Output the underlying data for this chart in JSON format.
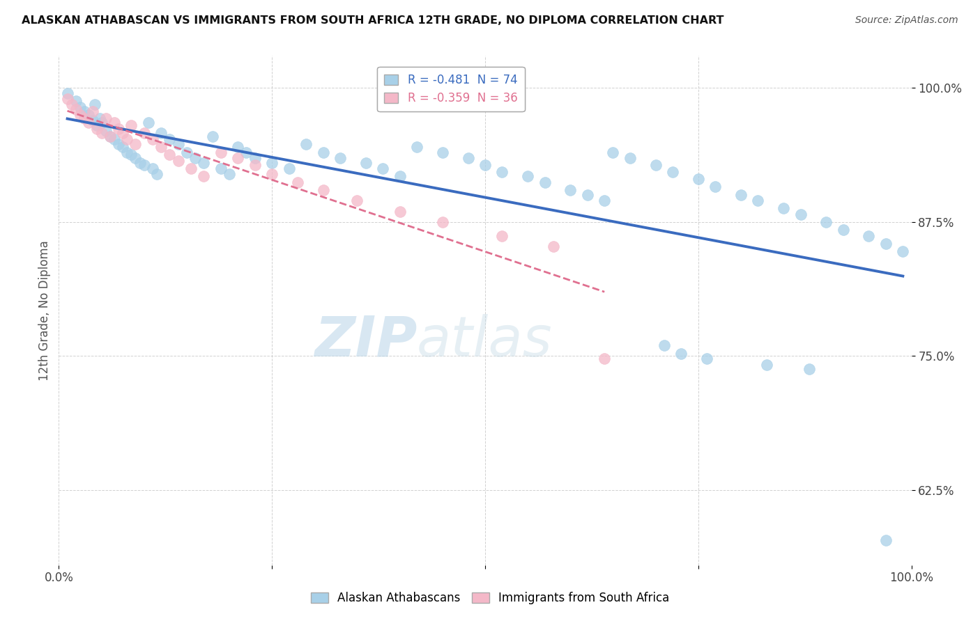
{
  "title": "ALASKAN ATHABASCAN VS IMMIGRANTS FROM SOUTH AFRICA 12TH GRADE, NO DIPLOMA CORRELATION CHART",
  "source": "Source: ZipAtlas.com",
  "ylabel": "12th Grade, No Diploma",
  "xlim": [
    0.0,
    1.0
  ],
  "ylim": [
    0.555,
    1.03
  ],
  "yticks": [
    0.625,
    0.75,
    0.875,
    1.0
  ],
  "ytick_labels": [
    "62.5%",
    "75.0%",
    "87.5%",
    "100.0%"
  ],
  "xticks": [
    0.0,
    0.25,
    0.5,
    0.75,
    1.0
  ],
  "xtick_labels": [
    "0.0%",
    "",
    "",
    "",
    "100.0%"
  ],
  "legend_blue_r": "-0.481",
  "legend_blue_n": "74",
  "legend_pink_r": "-0.359",
  "legend_pink_n": "36",
  "blue_color": "#a8d0e8",
  "pink_color": "#f4b8c8",
  "blue_line_color": "#3a6bbf",
  "pink_line_color": "#e07090",
  "background_color": "#ffffff",
  "watermark_zip": "ZIP",
  "watermark_atlas": "atlas",
  "blue_x": [
    0.01,
    0.02,
    0.025,
    0.03,
    0.035,
    0.04,
    0.042,
    0.045,
    0.048,
    0.05,
    0.055,
    0.06,
    0.065,
    0.07,
    0.075,
    0.08,
    0.085,
    0.09,
    0.095,
    0.1,
    0.105,
    0.11,
    0.115,
    0.12,
    0.13,
    0.14,
    0.15,
    0.16,
    0.17,
    0.18,
    0.19,
    0.2,
    0.21,
    0.22,
    0.23,
    0.25,
    0.27,
    0.29,
    0.31,
    0.33,
    0.36,
    0.38,
    0.4,
    0.42,
    0.45,
    0.48,
    0.5,
    0.52,
    0.55,
    0.57,
    0.6,
    0.62,
    0.64,
    0.65,
    0.67,
    0.7,
    0.72,
    0.75,
    0.77,
    0.8,
    0.82,
    0.85,
    0.87,
    0.9,
    0.92,
    0.95,
    0.97,
    0.99,
    0.71,
    0.73,
    0.76,
    0.83,
    0.88,
    0.97
  ],
  "blue_y": [
    0.995,
    0.988,
    0.982,
    0.978,
    0.975,
    0.97,
    0.985,
    0.965,
    0.972,
    0.968,
    0.96,
    0.955,
    0.952,
    0.948,
    0.945,
    0.94,
    0.938,
    0.935,
    0.93,
    0.928,
    0.968,
    0.925,
    0.92,
    0.958,
    0.952,
    0.948,
    0.94,
    0.935,
    0.93,
    0.955,
    0.925,
    0.92,
    0.945,
    0.94,
    0.935,
    0.93,
    0.925,
    0.948,
    0.94,
    0.935,
    0.93,
    0.925,
    0.918,
    0.945,
    0.94,
    0.935,
    0.928,
    0.922,
    0.918,
    0.912,
    0.905,
    0.9,
    0.895,
    0.94,
    0.935,
    0.928,
    0.922,
    0.915,
    0.908,
    0.9,
    0.895,
    0.888,
    0.882,
    0.875,
    0.868,
    0.862,
    0.855,
    0.848,
    0.76,
    0.752,
    0.748,
    0.742,
    0.738,
    0.578
  ],
  "pink_x": [
    0.01,
    0.015,
    0.02,
    0.025,
    0.03,
    0.035,
    0.04,
    0.045,
    0.05,
    0.055,
    0.06,
    0.065,
    0.07,
    0.075,
    0.08,
    0.085,
    0.09,
    0.1,
    0.11,
    0.12,
    0.13,
    0.14,
    0.155,
    0.17,
    0.19,
    0.21,
    0.23,
    0.25,
    0.28,
    0.31,
    0.35,
    0.4,
    0.45,
    0.52,
    0.58,
    0.64
  ],
  "pink_y": [
    0.99,
    0.985,
    0.98,
    0.975,
    0.972,
    0.968,
    0.978,
    0.962,
    0.958,
    0.972,
    0.955,
    0.968,
    0.962,
    0.958,
    0.952,
    0.965,
    0.948,
    0.958,
    0.952,
    0.945,
    0.938,
    0.932,
    0.925,
    0.918,
    0.94,
    0.935,
    0.928,
    0.92,
    0.912,
    0.905,
    0.895,
    0.885,
    0.875,
    0.862,
    0.852,
    0.748
  ]
}
